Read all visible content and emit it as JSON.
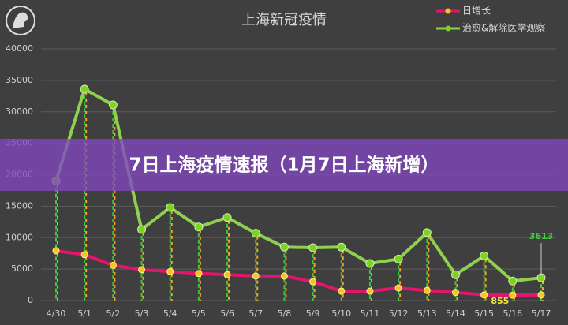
{
  "chart_data": {
    "type": "line",
    "title": "上海新冠疫情",
    "categories": [
      "4/30",
      "5/1",
      "5/2",
      "5/3",
      "5/4",
      "5/5",
      "5/6",
      "5/7",
      "5/8",
      "5/9",
      "5/10",
      "5/11",
      "5/12",
      "5/13",
      "5/14",
      "5/15",
      "5/16",
      "5/17"
    ],
    "series": [
      {
        "name": "日增长",
        "color": "#e0156b",
        "marker_color": "#f5c518",
        "drop_color": "#f5a623",
        "values": [
          7900,
          7300,
          5600,
          4900,
          4600,
          4300,
          4100,
          3900,
          3900,
          3000,
          1500,
          1500,
          2000,
          1600,
          1300,
          900,
          855,
          900
        ],
        "value_labels": [
          null,
          null,
          null,
          null,
          null,
          null,
          null,
          null,
          null,
          null,
          null,
          null,
          null,
          null,
          null,
          null,
          "855",
          null
        ],
        "label_color": "#f5e642"
      },
      {
        "name": "治愈&解除医学观察",
        "color": "#8fd14f",
        "marker_color": "#7ed321",
        "drop_color": "#3cc83c",
        "values": [
          19000,
          33600,
          31100,
          11300,
          14800,
          11700,
          13200,
          10700,
          8500,
          8400,
          8500,
          5900,
          6600,
          10800,
          4100,
          7100,
          3100,
          3613
        ],
        "value_labels": [
          null,
          null,
          null,
          null,
          null,
          null,
          null,
          null,
          null,
          null,
          null,
          null,
          null,
          null,
          null,
          null,
          null,
          "3613"
        ],
        "label_color": "#3cd23c"
      }
    ],
    "ylim": [
      0,
      40000
    ],
    "yticks": [
      0,
      5000,
      10000,
      15000,
      20000,
      25000,
      30000,
      35000,
      40000
    ],
    "grid": true
  },
  "banner": {
    "text": "7日上海疫情速报（1月7日上海新增）"
  }
}
